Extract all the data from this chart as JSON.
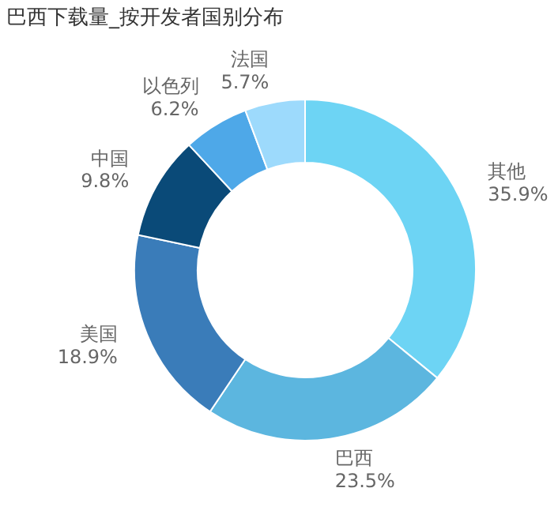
{
  "chart_data": {
    "type": "donut",
    "title": "巴西下载量_按开发者国别分布",
    "categories": [
      "其他",
      "巴西",
      "美国",
      "中国",
      "以色列",
      "法国"
    ],
    "values": [
      35.9,
      23.5,
      18.9,
      9.8,
      6.2,
      5.7
    ],
    "value_labels": [
      "35.9%",
      "23.5%",
      "18.9%",
      "9.8%",
      "6.2%",
      "5.7%"
    ],
    "colors": [
      "#6dd4f4",
      "#5cb6df",
      "#3a7cb9",
      "#0a4a78",
      "#4ea8e8",
      "#9ddafc"
    ],
    "legend": false
  }
}
